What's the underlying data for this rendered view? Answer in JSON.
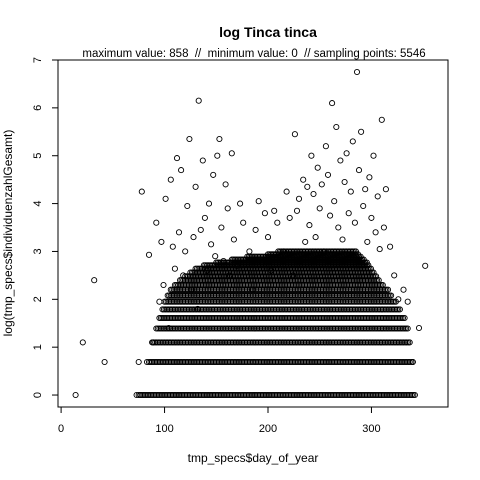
{
  "chart_data": {
    "type": "scatter",
    "title": "log Tinca tinca",
    "subtitle": "maximum value: 858  //  minimum value: 0  // sampling points: 5546",
    "xlabel": "tmp_specs$day_of_year",
    "ylabel": "log(tmp_specs$individuenzahlGesamt)",
    "xlim": [
      -3,
      374
    ],
    "ylim": [
      -0.25,
      7.0
    ],
    "xticks": [
      0,
      100,
      200,
      300
    ],
    "yticks": [
      0,
      1,
      2,
      3,
      4,
      5,
      6,
      7
    ],
    "x_tick_labels": [
      "0",
      "100",
      "200",
      "300"
    ],
    "y_tick_labels": [
      "0",
      "1",
      "2",
      "3",
      "4",
      "5",
      "6",
      "7"
    ],
    "marker": "open-circle",
    "grid": false,
    "legend": "none",
    "sampled_points": [
      [
        14,
        0
      ],
      [
        21,
        1.1
      ],
      [
        32,
        2.4
      ],
      [
        42,
        0.69
      ],
      [
        73,
        0
      ],
      [
        75,
        0.69
      ],
      [
        78,
        4.25
      ],
      [
        83,
        0.69
      ],
      [
        85,
        2.93
      ],
      [
        89,
        1.1
      ],
      [
        92,
        3.6
      ],
      [
        95,
        1.95
      ],
      [
        97,
        3.2
      ],
      [
        99,
        2.3
      ],
      [
        101,
        4.1
      ],
      [
        104,
        1.4
      ],
      [
        106,
        4.5
      ],
      [
        108,
        3.1
      ],
      [
        110,
        2.64
      ],
      [
        112,
        4.95
      ],
      [
        114,
        3.4
      ],
      [
        116,
        4.7
      ],
      [
        118,
        2.5
      ],
      [
        120,
        3.0
      ],
      [
        122,
        3.95
      ],
      [
        124,
        5.35
      ],
      [
        126,
        2.2
      ],
      [
        128,
        3.3
      ],
      [
        130,
        4.35
      ],
      [
        132,
        1.8
      ],
      [
        133,
        6.15
      ],
      [
        135,
        3.45
      ],
      [
        137,
        4.9
      ],
      [
        139,
        3.7
      ],
      [
        141,
        2.6
      ],
      [
        143,
        4.0
      ],
      [
        145,
        3.15
      ],
      [
        147,
        4.6
      ],
      [
        149,
        2.9
      ],
      [
        151,
        5.0
      ],
      [
        153,
        5.35
      ],
      [
        155,
        3.5
      ],
      [
        157,
        2.8
      ],
      [
        159,
        4.4
      ],
      [
        161,
        3.9
      ],
      [
        163,
        2.5
      ],
      [
        165,
        5.05
      ],
      [
        167,
        3.25
      ],
      [
        170,
        2.7
      ],
      [
        173,
        4.0
      ],
      [
        176,
        3.6
      ],
      [
        179,
        2.56
      ],
      [
        182,
        3.0
      ],
      [
        185,
        2.2
      ],
      [
        188,
        3.45
      ],
      [
        191,
        4.05
      ],
      [
        194,
        2.77
      ],
      [
        197,
        3.8
      ],
      [
        200,
        3.3
      ],
      [
        203,
        2.6
      ],
      [
        206,
        3.85
      ],
      [
        209,
        3.6
      ],
      [
        212,
        2.9
      ],
      [
        215,
        3.0
      ],
      [
        218,
        4.25
      ],
      [
        221,
        3.7
      ],
      [
        224,
        2.5
      ],
      [
        226,
        5.45
      ],
      [
        228,
        3.85
      ],
      [
        230,
        4.1
      ],
      [
        232,
        2.8
      ],
      [
        234,
        4.5
      ],
      [
        236,
        3.2
      ],
      [
        238,
        4.35
      ],
      [
        240,
        3.55
      ],
      [
        242,
        5.0
      ],
      [
        244,
        4.2
      ],
      [
        246,
        3.3
      ],
      [
        248,
        4.75
      ],
      [
        250,
        3.9
      ],
      [
        252,
        4.4
      ],
      [
        254,
        3.0
      ],
      [
        256,
        5.2
      ],
      [
        258,
        4.6
      ],
      [
        260,
        3.75
      ],
      [
        262,
        6.1
      ],
      [
        264,
        4.05
      ],
      [
        266,
        5.6
      ],
      [
        268,
        3.5
      ],
      [
        270,
        4.9
      ],
      [
        272,
        3.25
      ],
      [
        274,
        4.45
      ],
      [
        276,
        5.05
      ],
      [
        278,
        3.8
      ],
      [
        280,
        4.25
      ],
      [
        282,
        5.3
      ],
      [
        284,
        3.6
      ],
      [
        286,
        6.75
      ],
      [
        288,
        4.7
      ],
      [
        290,
        5.5
      ],
      [
        292,
        3.95
      ],
      [
        294,
        4.3
      ],
      [
        296,
        3.2
      ],
      [
        298,
        4.55
      ],
      [
        300,
        3.7
      ],
      [
        302,
        5.0
      ],
      [
        304,
        3.4
      ],
      [
        306,
        4.15
      ],
      [
        308,
        3.05
      ],
      [
        310,
        5.75
      ],
      [
        312,
        3.5
      ],
      [
        314,
        4.3
      ],
      [
        318,
        3.1
      ],
      [
        322,
        2.5
      ],
      [
        326,
        2.0
      ],
      [
        331,
        2.2
      ],
      [
        335,
        1.95
      ],
      [
        340,
        0.69
      ],
      [
        346,
        1.4
      ],
      [
        352,
        2.7
      ]
    ],
    "dense_bands": [
      {
        "y": 0,
        "x_range": [
          75,
          342
        ]
      },
      {
        "y": 0.69,
        "x_range": [
          85,
          340
        ]
      },
      {
        "y": 1.1,
        "x_range": [
          88,
          337
        ]
      },
      {
        "y": 1.39,
        "x_range": [
          92,
          335
        ]
      },
      {
        "y": 1.61,
        "x_range": [
          95,
          332
        ]
      },
      {
        "y": 1.79,
        "x_range": [
          98,
          328
        ]
      },
      {
        "y": 1.95,
        "x_range": [
          100,
          324
        ]
      },
      {
        "y": 2.08,
        "x_range": [
          103,
          320
        ]
      },
      {
        "y": 2.2,
        "x_range": [
          106,
          316
        ]
      },
      {
        "y": 2.3,
        "x_range": [
          110,
          312
        ]
      },
      {
        "y": 2.4,
        "x_range": [
          115,
          308
        ]
      },
      {
        "y": 2.48,
        "x_range": [
          120,
          305
        ]
      },
      {
        "y": 2.56,
        "x_range": [
          125,
          302
        ]
      },
      {
        "y": 2.64,
        "x_range": [
          130,
          300
        ]
      },
      {
        "y": 2.71,
        "x_range": [
          138,
          298
        ]
      },
      {
        "y": 2.77,
        "x_range": [
          150,
          296
        ]
      },
      {
        "y": 2.83,
        "x_range": [
          165,
          293
        ]
      },
      {
        "y": 2.89,
        "x_range": [
          180,
          290
        ]
      },
      {
        "y": 2.94,
        "x_range": [
          200,
          288
        ]
      },
      {
        "y": 3.0,
        "x_range": [
          210,
          285
        ]
      }
    ]
  }
}
